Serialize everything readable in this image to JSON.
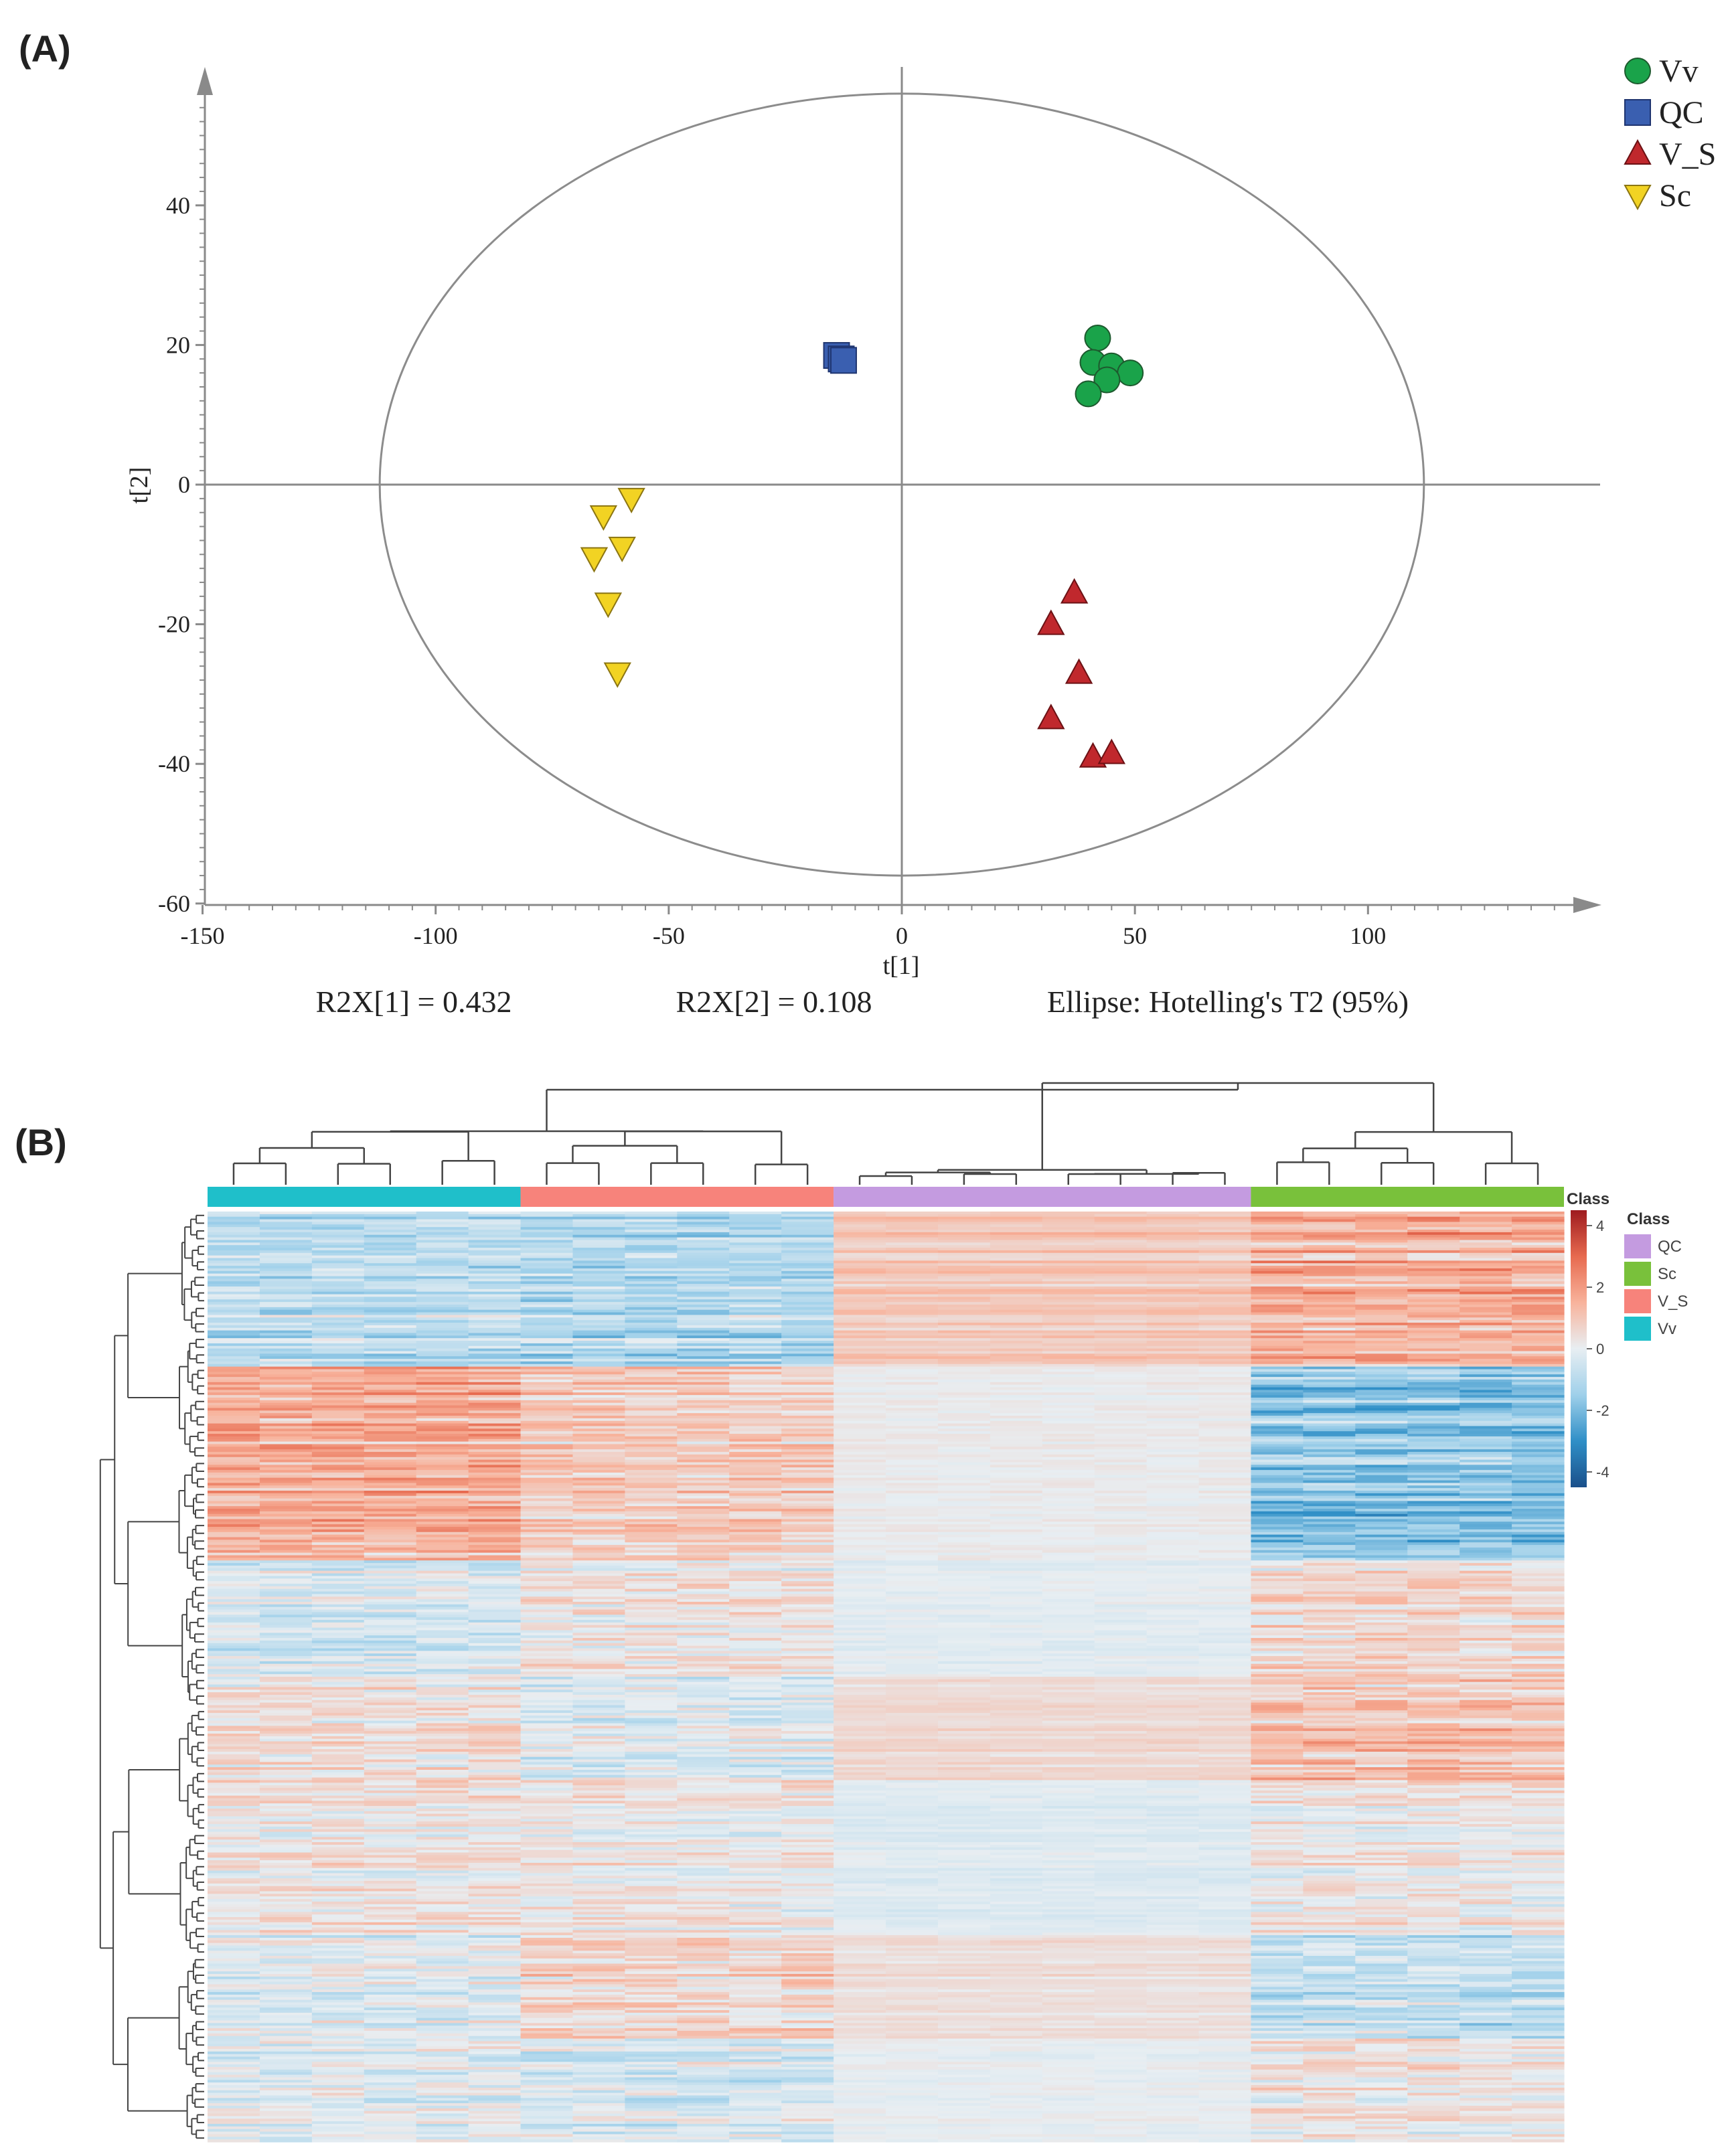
{
  "panels": {
    "a_label": "(A)",
    "b_label": "(B)"
  },
  "chart_data": [
    {
      "type": "scatter",
      "title": "",
      "xlabel": "t[1]",
      "ylabel": "t[2]",
      "xlim": [
        -150,
        150
      ],
      "ylim": [
        -60,
        60
      ],
      "xticks": [
        -150,
        -100,
        -50,
        0,
        50,
        100
      ],
      "yticks": [
        -60,
        -40,
        -20,
        0,
        20,
        40
      ],
      "ellipse": {
        "label": "Ellipse: Hotelling's T2 (95%)",
        "rx": 112,
        "ry": 56
      },
      "footer": {
        "r2x1": "R2X[1] = 0.432",
        "r2x2": "R2X[2] = 0.108",
        "ellipse": "Ellipse: Hotelling's T2 (95%)"
      },
      "series": [
        {
          "name": "Vv",
          "marker": "circle",
          "color": "#1aa34a",
          "points": [
            [
              42,
              21
            ],
            [
              41,
              17.5
            ],
            [
              45,
              17
            ],
            [
              49,
              16
            ],
            [
              44,
              15
            ],
            [
              40,
              13
            ]
          ]
        },
        {
          "name": "QC",
          "marker": "square",
          "color": "#3a5fb0",
          "points": [
            [
              -14,
              18.5
            ],
            [
              -13,
              18
            ],
            [
              -12.5,
              17.8
            ]
          ]
        },
        {
          "name": "V_S",
          "marker": "triangle-up",
          "color": "#c0282d",
          "points": [
            [
              37,
              -15.5
            ],
            [
              32,
              -20
            ],
            [
              38,
              -27
            ],
            [
              32,
              -33.5
            ],
            [
              41,
              -39
            ],
            [
              45,
              -38.5
            ]
          ]
        },
        {
          "name": "Sc",
          "marker": "triangle-down",
          "color": "#f2d323",
          "points": [
            [
              -58,
              -2
            ],
            [
              -64,
              -4.5
            ],
            [
              -60,
              -9
            ],
            [
              -66,
              -10.5
            ],
            [
              -63,
              -17
            ],
            [
              -61,
              -27
            ]
          ]
        }
      ]
    },
    {
      "type": "heatmap",
      "title": "",
      "groups": [
        {
          "name": "Vv",
          "color": "#1fbfca",
          "columns": 6
        },
        {
          "name": "V_S",
          "color": "#f7837b",
          "columns": 6
        },
        {
          "name": "QC",
          "color": "#c49be0",
          "columns": 8
        },
        {
          "name": "Sc",
          "color": "#79c13b",
          "columns": 6
        }
      ],
      "row_clusters": [
        {
          "rows": 60,
          "pattern": [
            -0.9,
            -1.1,
            1.0,
            1.6
          ]
        },
        {
          "rows": 75,
          "pattern": [
            1.5,
            0.8,
            0.1,
            -1.6
          ]
        },
        {
          "rows": 45,
          "pattern": [
            -0.4,
            0.3,
            -0.1,
            0.6
          ]
        },
        {
          "rows": 40,
          "pattern": [
            0.4,
            -0.2,
            0.5,
            1.0
          ]
        },
        {
          "rows": 60,
          "pattern": [
            0.3,
            0.2,
            -0.2,
            0.2
          ]
        },
        {
          "rows": 40,
          "pattern": [
            -0.2,
            0.6,
            0.4,
            -0.8
          ]
        },
        {
          "rows": 40,
          "pattern": [
            -0.1,
            -0.3,
            0.0,
            0.3
          ]
        }
      ],
      "colorbar": {
        "title": "Class",
        "ticks": [
          4,
          2,
          0,
          -2,
          -4
        ],
        "range": [
          -4.5,
          4.5
        ],
        "colors": [
          "#1a4f8a",
          "#2f8fc7",
          "#9fd0ea",
          "#e8eef2",
          "#f8b39c",
          "#e76a4f",
          "#9e1b1f"
        ]
      },
      "class_legend": {
        "title": "Class",
        "items": [
          {
            "name": "QC",
            "color": "#c49be0"
          },
          {
            "name": "Sc",
            "color": "#79c13b"
          },
          {
            "name": "V_S",
            "color": "#f7837b"
          },
          {
            "name": "Vv",
            "color": "#1fbfca"
          }
        ]
      }
    }
  ]
}
